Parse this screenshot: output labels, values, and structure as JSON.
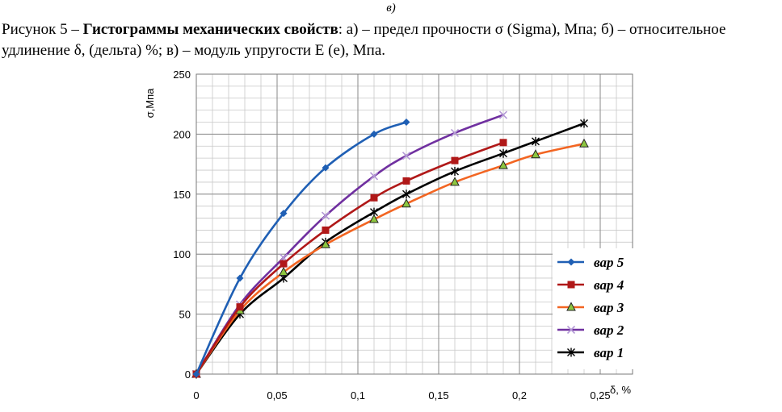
{
  "top_label": "в)",
  "caption": {
    "prefix": "Рисунок 5 – ",
    "bold": "Гистограммы механических свойств",
    "rest": ": а) – предел прочности σ (Sigma), Мпа; б) – относительное удлинение δ, (дельта) %; в) – модуль упругости Е (е), Мпа."
  },
  "chart_data": {
    "type": "line",
    "xlabel": "δ, %",
    "ylabel": "σ,Мпа",
    "xlim": [
      0,
      0.27
    ],
    "ylim": [
      0,
      250
    ],
    "x_ticks": [
      0,
      0.05,
      0.1,
      0.15,
      0.2,
      0.25
    ],
    "x_tick_labels": [
      "0",
      "0,05",
      "0,1",
      "0,15",
      "0,2",
      "0,25"
    ],
    "y_ticks": [
      0,
      50,
      100,
      150,
      200,
      250
    ],
    "y_tick_labels": [
      "0",
      "50",
      "100",
      "150",
      "200",
      "250"
    ],
    "grid": true,
    "legend_position": "right",
    "series": [
      {
        "name": "вар 5",
        "color": "#1f5fb4",
        "marker": "diamond",
        "x": [
          0,
          0.027,
          0.054,
          0.08,
          0.11,
          0.13
        ],
        "y": [
          0,
          80,
          134,
          172,
          200,
          210
        ]
      },
      {
        "name": "вар 4",
        "color": "#b01818",
        "marker": "square",
        "x": [
          0,
          0.027,
          0.054,
          0.08,
          0.11,
          0.13,
          0.16,
          0.19
        ],
        "y": [
          0,
          56,
          92,
          120,
          147,
          161,
          178,
          193
        ]
      },
      {
        "name": "вар 3",
        "color": "#f26522",
        "marker": "triangle",
        "x": [
          0,
          0.027,
          0.054,
          0.08,
          0.11,
          0.13,
          0.16,
          0.19,
          0.21,
          0.24
        ],
        "y": [
          0,
          53,
          85,
          108,
          129,
          142,
          160,
          174,
          183,
          192
        ]
      },
      {
        "name": "вар 2",
        "color": "#7030a0",
        "marker": "x",
        "x": [
          0,
          0.027,
          0.054,
          0.08,
          0.11,
          0.13,
          0.16,
          0.19
        ],
        "y": [
          0,
          58,
          97,
          132,
          165,
          182,
          201,
          216
        ]
      },
      {
        "name": "вар 1",
        "color": "#000000",
        "marker": "star",
        "x": [
          0,
          0.027,
          0.054,
          0.08,
          0.11,
          0.13,
          0.16,
          0.19,
          0.21,
          0.24
        ],
        "y": [
          0,
          50,
          80,
          110,
          135,
          150,
          169,
          184,
          194,
          209
        ]
      }
    ]
  }
}
